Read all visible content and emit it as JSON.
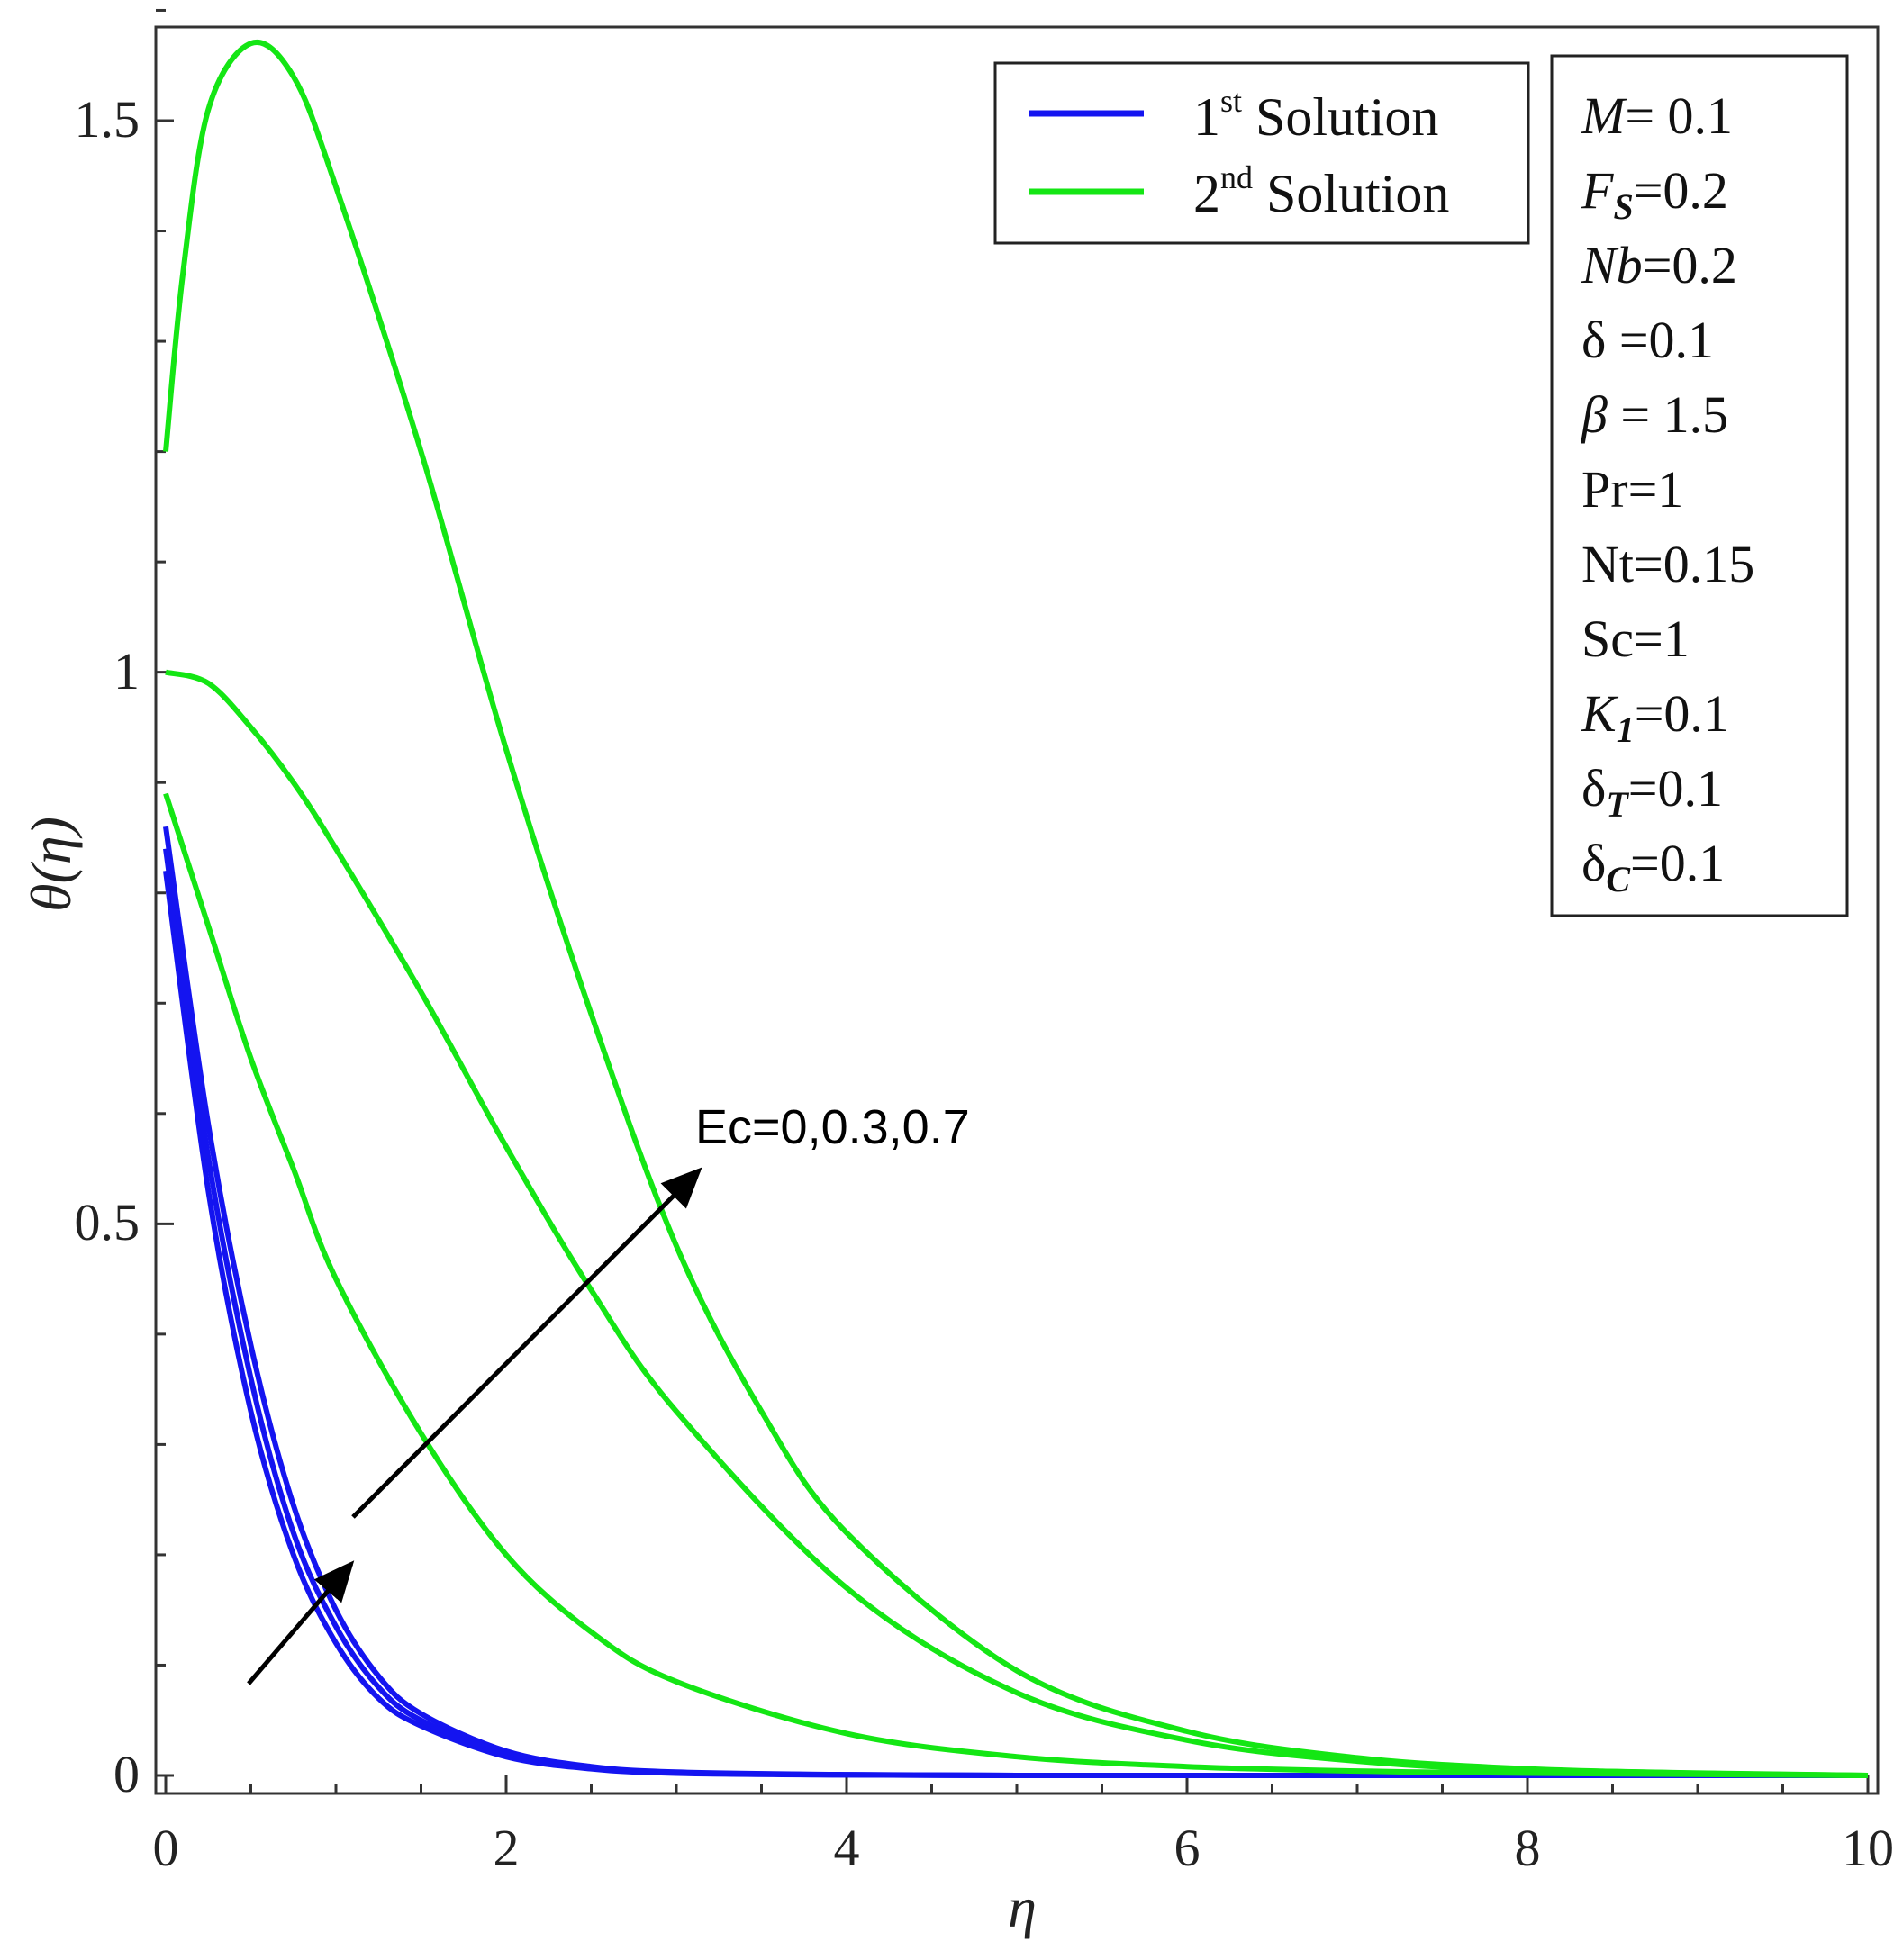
{
  "chart_data": {
    "type": "line",
    "title": "",
    "xlabel": "η",
    "ylabel": "θ(η)",
    "xlim": [
      0,
      10
    ],
    "ylim": [
      0,
      1.5
    ],
    "xticks": [
      "0",
      "2",
      "4",
      "6",
      "8",
      "10"
    ],
    "yticks": [
      "0",
      "0.5",
      "1",
      "1.5"
    ],
    "grid": false,
    "legend_position": "top-right",
    "legend": [
      {
        "base": "1",
        "sup": "st",
        "rest": " Solution",
        "color": "#1414f0"
      },
      {
        "base": "2",
        "sup": "nd",
        "rest": " Solution",
        "color": "#14e614"
      }
    ],
    "series": [
      {
        "group": "1st Solution",
        "color": "#1414f0",
        "x": [
          0,
          0.25,
          0.5,
          0.75,
          1,
          1.25,
          1.5,
          2,
          2.5,
          3,
          4,
          5,
          6,
          8,
          10
        ],
        "y": [
          0.82,
          0.53,
          0.33,
          0.2,
          0.12,
          0.07,
          0.045,
          0.017,
          0.006,
          0.002,
          0.0005,
          0,
          0,
          0,
          0
        ]
      },
      {
        "group": "1st Solution",
        "color": "#1414f0",
        "x": [
          0,
          0.25,
          0.5,
          0.75,
          1,
          1.25,
          1.5,
          2,
          2.5,
          3,
          4,
          5,
          6,
          8,
          10
        ],
        "y": [
          0.84,
          0.56,
          0.36,
          0.22,
          0.135,
          0.08,
          0.05,
          0.02,
          0.007,
          0.0025,
          0.0006,
          0,
          0,
          0,
          0
        ]
      },
      {
        "group": "1st Solution",
        "color": "#1414f0",
        "x": [
          0,
          0.25,
          0.5,
          0.75,
          1,
          1.25,
          1.5,
          2,
          2.5,
          3,
          4,
          5,
          6,
          8,
          10
        ],
        "y": [
          0.86,
          0.59,
          0.39,
          0.245,
          0.15,
          0.09,
          0.056,
          0.022,
          0.008,
          0.003,
          0.0007,
          0,
          0,
          0,
          0
        ]
      },
      {
        "group": "2nd Solution",
        "color": "#14e614",
        "x": [
          0,
          0.25,
          0.5,
          0.75,
          1,
          1.5,
          2,
          2.5,
          3,
          4,
          5,
          6,
          7,
          8,
          10
        ],
        "y": [
          0.89,
          0.77,
          0.65,
          0.55,
          0.45,
          0.31,
          0.2,
          0.13,
          0.085,
          0.038,
          0.017,
          0.008,
          0.004,
          0.002,
          0
        ]
      },
      {
        "group": "2nd Solution",
        "color": "#14e614",
        "x": [
          0,
          0.25,
          0.5,
          0.75,
          1,
          1.5,
          2,
          2.5,
          3,
          4,
          5,
          6,
          7,
          8,
          10
        ],
        "y": [
          1.0,
          0.99,
          0.95,
          0.9,
          0.84,
          0.71,
          0.57,
          0.44,
          0.33,
          0.17,
          0.075,
          0.032,
          0.013,
          0.005,
          0
        ]
      },
      {
        "group": "2nd Solution",
        "color": "#14e614",
        "x": [
          0,
          0.1,
          0.25,
          0.5,
          0.75,
          1,
          1.5,
          2,
          2.5,
          3,
          3.5,
          4,
          5,
          6,
          7,
          8,
          9,
          10
        ],
        "y": [
          1.2,
          1.36,
          1.51,
          1.57,
          1.54,
          1.44,
          1.2,
          0.93,
          0.69,
          0.48,
          0.33,
          0.22,
          0.095,
          0.04,
          0.016,
          0.006,
          0.002,
          0
        ]
      }
    ],
    "parameters": [
      {
        "label": "M",
        "sub": "",
        "value": "= 0.1",
        "italic": true
      },
      {
        "label": "F",
        "sub": "S",
        "value": "=0.2",
        "italic": true
      },
      {
        "label": "Nb",
        "sub": "",
        "value": "=0.2",
        "italic": true
      },
      {
        "label": "δ",
        "sub": "",
        "value": " =0.1",
        "italic": false
      },
      {
        "label": "β",
        "sub": "",
        "value": " = 1.5",
        "italic": true
      },
      {
        "label": "Pr",
        "sub": "",
        "value": "=1",
        "italic": false
      },
      {
        "label": "Nt",
        "sub": "",
        "value": "=0.15",
        "italic": false
      },
      {
        "label": "Sc",
        "sub": "",
        "value": "=1",
        "italic": false
      },
      {
        "label": "K",
        "sub": "1",
        "value": "=0.1",
        "italic": true
      },
      {
        "label": "δ",
        "sub": "T",
        "value": "=0.1",
        "italic": false
      },
      {
        "label": "δ",
        "sub": "C",
        "value": "=0.1",
        "italic": false
      }
    ],
    "annotations": [
      {
        "text": "Ec=0,0.3,0.7"
      }
    ]
  }
}
